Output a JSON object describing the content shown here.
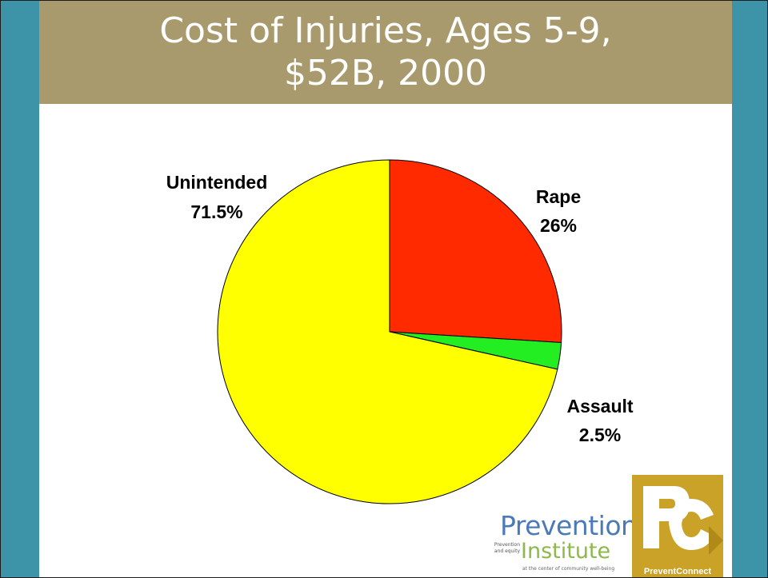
{
  "slide": {
    "title_line1": "Cost of Injuries, Ages 5-9,",
    "title_line2": "$52B, 2000"
  },
  "chart_data": {
    "type": "pie",
    "title": "Cost of Injuries, Ages 5-9, $52B, 2000",
    "slices": [
      {
        "label": "Rape",
        "value_label": "26%",
        "value": 26,
        "color": "#ff2a00"
      },
      {
        "label": "Assault",
        "value_label": "2.5%",
        "value": 2.5,
        "color": "#22ee22"
      },
      {
        "label": "Unintended",
        "value_label": "71.5%",
        "value": 71.5,
        "color": "#ffff00"
      }
    ],
    "start": "12 o'clock",
    "direction": "clockwise"
  },
  "logos": {
    "prevention_word1": "Prevention",
    "prevention_word2": "Institute",
    "prevention_small": "Prevention and equity",
    "prevention_tagline": "at the center of community well-being",
    "preventconnect_caption": "PreventConnect",
    "preventconnect_mark": "PC"
  }
}
